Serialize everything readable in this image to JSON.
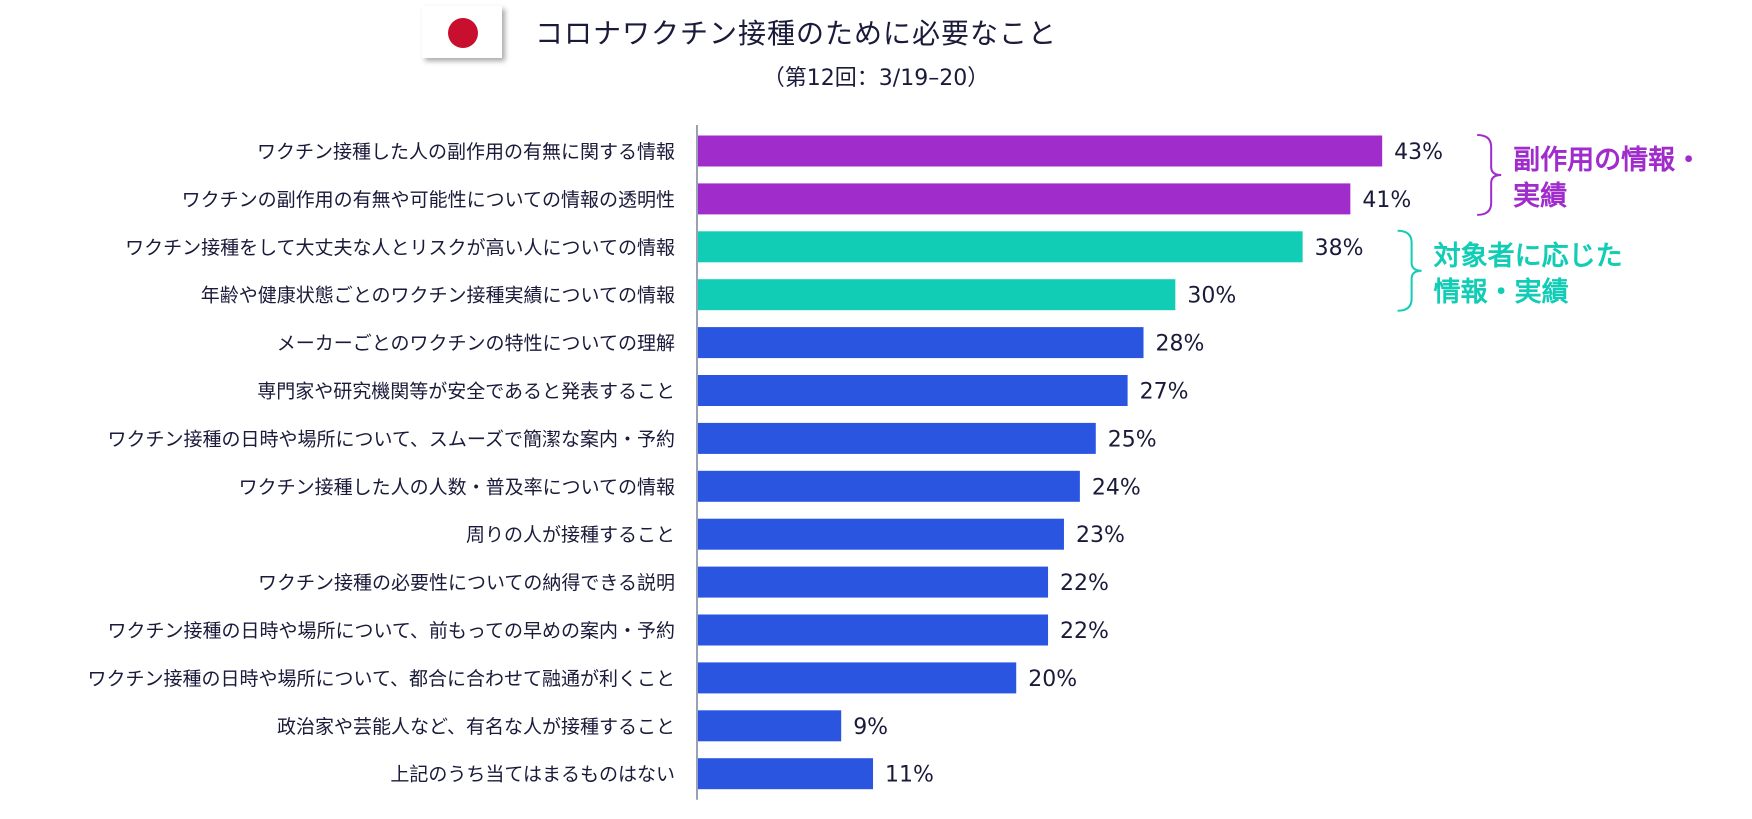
{
  "header": {
    "title": "コロナワクチン接種のために必要なこと",
    "subtitle": "（第12回：3/19–20）",
    "flag_icon": "japan-flag-icon"
  },
  "colors": {
    "purple": "#a02ccc",
    "teal": "#12cdb5",
    "blue": "#2a55e0",
    "axis": "#9aa0b5",
    "text": "#1a1a3a"
  },
  "chart_data": {
    "type": "bar",
    "orientation": "horizontal",
    "categories": [
      "ワクチン接種した人の副作用の有無に関する情報",
      "ワクチンの副作用の有無や可能性についての情報の透明性",
      "ワクチン接種をして大丈夫な人とリスクが高い人についての情報",
      "年齢や健康状態ごとのワクチン接種実績についての情報",
      "メーカーごとのワクチンの特性についての理解",
      "専門家や研究機関等が安全であると発表すること",
      "ワクチン接種の日時や場所について、スムーズで簡潔な案内・予約",
      "ワクチン接種した人の人数・普及率についての情報",
      "周りの人が接種すること",
      "ワクチン接種の必要性についての納得できる説明",
      "ワクチン接種の日時や場所について、前もっての早めの案内・予約",
      "ワクチン接種の日時や場所について、都合に合わせて融通が利くこと",
      "政治家や芸能人など、有名な人が接種すること",
      "上記のうち当てはまるものはない"
    ],
    "values": [
      43,
      41,
      38,
      30,
      28,
      27,
      25,
      24,
      23,
      22,
      22,
      20,
      9,
      11
    ],
    "value_labels": [
      "43%",
      "41%",
      "38%",
      "30%",
      "28%",
      "27%",
      "25%",
      "24%",
      "23%",
      "22%",
      "22%",
      "20%",
      "9%",
      "11%"
    ],
    "bar_groups": [
      "purple",
      "purple",
      "teal",
      "teal",
      "blue",
      "blue",
      "blue",
      "blue",
      "blue",
      "blue",
      "blue",
      "blue",
      "blue",
      "blue"
    ],
    "unit": "%",
    "xlim": [
      0,
      45
    ],
    "grid": false,
    "group_annotations": [
      {
        "lines": [
          "副作用の情報・",
          "実績"
        ],
        "color_key": "purple",
        "rows": [
          0,
          1
        ]
      },
      {
        "lines": [
          "対象者に応じた",
          "情報・実績"
        ],
        "color_key": "teal",
        "rows": [
          2,
          3
        ]
      }
    ]
  }
}
